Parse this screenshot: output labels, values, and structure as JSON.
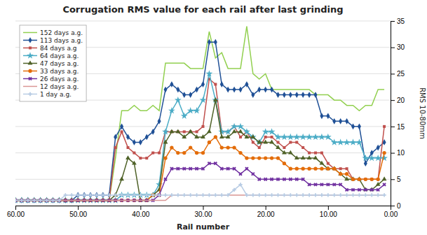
{
  "chart_data": {
    "type": "line",
    "title": "Corrugation RMS value for each rail after last grinding",
    "x_label": "Rail number",
    "y_label": "RMS 10-80mm",
    "x": [
      60,
      59,
      58,
      57,
      56,
      55,
      54,
      53,
      52,
      51,
      50,
      49,
      48,
      47,
      46,
      45,
      44,
      43,
      42,
      41,
      40,
      39,
      38,
      37,
      36,
      35,
      34,
      33,
      32,
      31,
      30,
      29,
      28,
      27,
      26,
      25,
      24,
      23,
      22,
      21,
      20,
      19,
      18,
      17,
      16,
      15,
      14,
      13,
      12,
      11,
      10,
      9,
      8,
      7,
      6,
      5,
      4,
      3,
      2,
      1
    ],
    "series": [
      {
        "name": "152 days a.g.",
        "color": "#92d050",
        "line_style": "solid",
        "values": [
          1,
          1,
          1,
          1,
          1,
          1,
          1,
          1,
          1,
          1,
          1,
          1,
          1,
          1,
          1,
          1,
          9,
          18,
          18,
          19,
          18,
          18,
          19,
          18,
          27,
          27,
          27,
          27,
          26,
          26,
          26,
          33,
          28,
          29,
          26,
          26,
          26,
          34,
          25,
          24,
          25,
          22,
          22,
          22,
          22,
          22,
          22,
          22,
          21,
          21,
          21,
          20,
          20,
          19,
          19,
          18,
          19,
          19,
          22,
          22
        ]
      },
      {
        "name": "113 days a.g.",
        "color": "#1f5096",
        "marker": "diamond",
        "line_style": "solid",
        "values": [
          1,
          1,
          1,
          1,
          1,
          1,
          1,
          1,
          1,
          1,
          2,
          2,
          2,
          2,
          2,
          2,
          13,
          15,
          13,
          12,
          12,
          13,
          14,
          16,
          22,
          23,
          22,
          21,
          21,
          22,
          23,
          31,
          31,
          23,
          22,
          22,
          22,
          23,
          21,
          22,
          22,
          22,
          21,
          21,
          21,
          21,
          21,
          21,
          21,
          17,
          17,
          16,
          16,
          16,
          15,
          15,
          8,
          10,
          11,
          12
        ]
      },
      {
        "name": "84 days a.g",
        "color": "#c0504d",
        "marker": "square",
        "line_style": "solid",
        "values": [
          1,
          1,
          1,
          1,
          1,
          1,
          1,
          1,
          1,
          1,
          1,
          1,
          1,
          1,
          1,
          1,
          11,
          14,
          11,
          10,
          9,
          9,
          10,
          10,
          14,
          14,
          14,
          14,
          14,
          14,
          15,
          24,
          23,
          14,
          14,
          15,
          13,
          14,
          12,
          11,
          13,
          13,
          12,
          11,
          12,
          12,
          11,
          10,
          10,
          10,
          8,
          7,
          7,
          7,
          5,
          5,
          5,
          5,
          5,
          15
        ]
      },
      {
        "name": "64 days a.g.",
        "color": "#4bacc6",
        "marker": "star",
        "line_style": "solid",
        "values": [
          1,
          1,
          1,
          1,
          1,
          1,
          1,
          1,
          1,
          1,
          1,
          1,
          1,
          1,
          1,
          1,
          1,
          2,
          2,
          2,
          2,
          2,
          2,
          4,
          14,
          18,
          20,
          17,
          18,
          18,
          20,
          25,
          20,
          14,
          14,
          15,
          15,
          14,
          13,
          12,
          14,
          14,
          13,
          13,
          13,
          13,
          13,
          13,
          13,
          13,
          13,
          12,
          12,
          12,
          12,
          12,
          9,
          9,
          9,
          9
        ]
      },
      {
        "name": "47 days a.g.",
        "color": "#4f6228",
        "marker": "triangle",
        "line_style": "solid",
        "values": [
          1,
          1,
          1,
          1,
          1,
          1,
          1,
          1,
          1,
          1,
          1,
          1,
          1,
          1,
          1,
          1,
          2,
          5,
          9,
          8,
          1,
          1,
          2,
          3,
          12,
          14,
          14,
          13,
          14,
          13,
          13,
          14,
          20,
          13,
          13,
          14,
          14,
          13,
          13,
          12,
          12,
          12,
          11,
          10,
          10,
          9,
          9,
          9,
          9,
          8,
          7,
          7,
          6,
          5,
          5,
          5,
          3,
          3,
          4,
          5
        ]
      },
      {
        "name": "33 days a.g.",
        "color": "#e36c09",
        "marker": "circle",
        "line_style": "solid",
        "values": [
          1,
          1,
          1,
          1,
          1,
          1,
          1,
          1,
          1,
          1,
          1,
          1,
          1,
          1,
          1,
          1,
          1,
          1,
          1,
          1,
          1,
          1,
          2,
          2,
          9,
          11,
          10,
          10,
          11,
          10,
          10,
          12,
          13,
          11,
          11,
          11,
          10,
          9,
          9,
          9,
          9,
          9,
          9,
          8,
          7,
          7,
          7,
          7,
          7,
          7,
          7,
          7,
          6,
          6,
          5,
          5,
          5,
          5,
          5,
          10
        ]
      },
      {
        "name": "26 days a.g.",
        "color": "#7030a0",
        "marker": "x",
        "line_style": "solid",
        "values": [
          1,
          1,
          1,
          1,
          1,
          1,
          1,
          1,
          1,
          1,
          1,
          1,
          1,
          1,
          1,
          1,
          1,
          1,
          1,
          1,
          1,
          1,
          1,
          2,
          5,
          7,
          7,
          7,
          7,
          7,
          7,
          8,
          8,
          7,
          7,
          7,
          6,
          7,
          6,
          5,
          5,
          5,
          5,
          5,
          5,
          5,
          5,
          4,
          4,
          4,
          4,
          4,
          4,
          3,
          3,
          3,
          3,
          3,
          3,
          4
        ]
      },
      {
        "name": "12 days a.g.",
        "color": "#d99694",
        "line_style": "solid",
        "values": [
          1,
          1,
          1,
          1,
          1,
          1,
          1,
          1,
          1,
          1,
          1,
          1,
          1,
          1,
          1,
          1,
          1,
          1,
          1,
          1,
          1,
          1,
          1,
          1,
          1,
          2,
          2,
          2,
          2,
          2,
          2,
          2,
          2,
          2,
          2,
          2,
          2,
          2,
          2,
          2,
          2,
          2,
          2,
          2,
          2,
          2,
          2,
          2,
          2,
          2,
          2,
          2,
          2,
          2,
          2,
          2,
          2,
          2,
          2,
          2
        ]
      },
      {
        "name": "1 day a.g.",
        "color": "#b8cce4",
        "marker": "plus",
        "line_style": "solid",
        "values": [
          1,
          1,
          1,
          1,
          1,
          1,
          1,
          1,
          2,
          2,
          2,
          2,
          2,
          2,
          2,
          2,
          2,
          2,
          2,
          2,
          2,
          2,
          2,
          2,
          2,
          2,
          2,
          2,
          2,
          2,
          2,
          2,
          2,
          2,
          2,
          3,
          4,
          2,
          2,
          2,
          2,
          2,
          2,
          2,
          2,
          2,
          2,
          2,
          2,
          2,
          2,
          2,
          2,
          2,
          2,
          2,
          2,
          2,
          2,
          2
        ]
      }
    ],
    "xlim": [
      60,
      0
    ],
    "ylim": [
      0,
      35
    ],
    "xticks": [
      {
        "value": 60,
        "label": "60.00"
      },
      {
        "value": 50,
        "label": "50.00"
      },
      {
        "value": 40,
        "label": "40.00"
      },
      {
        "value": 30,
        "label": "30.00"
      },
      {
        "value": 20,
        "label": "20.00"
      },
      {
        "value": 10,
        "label": "10.00"
      },
      {
        "value": 0,
        "label": "0.00"
      }
    ],
    "yticks": [
      0,
      5,
      10,
      15,
      20,
      25,
      30,
      35
    ],
    "grid": "y",
    "legend": "upper left"
  }
}
